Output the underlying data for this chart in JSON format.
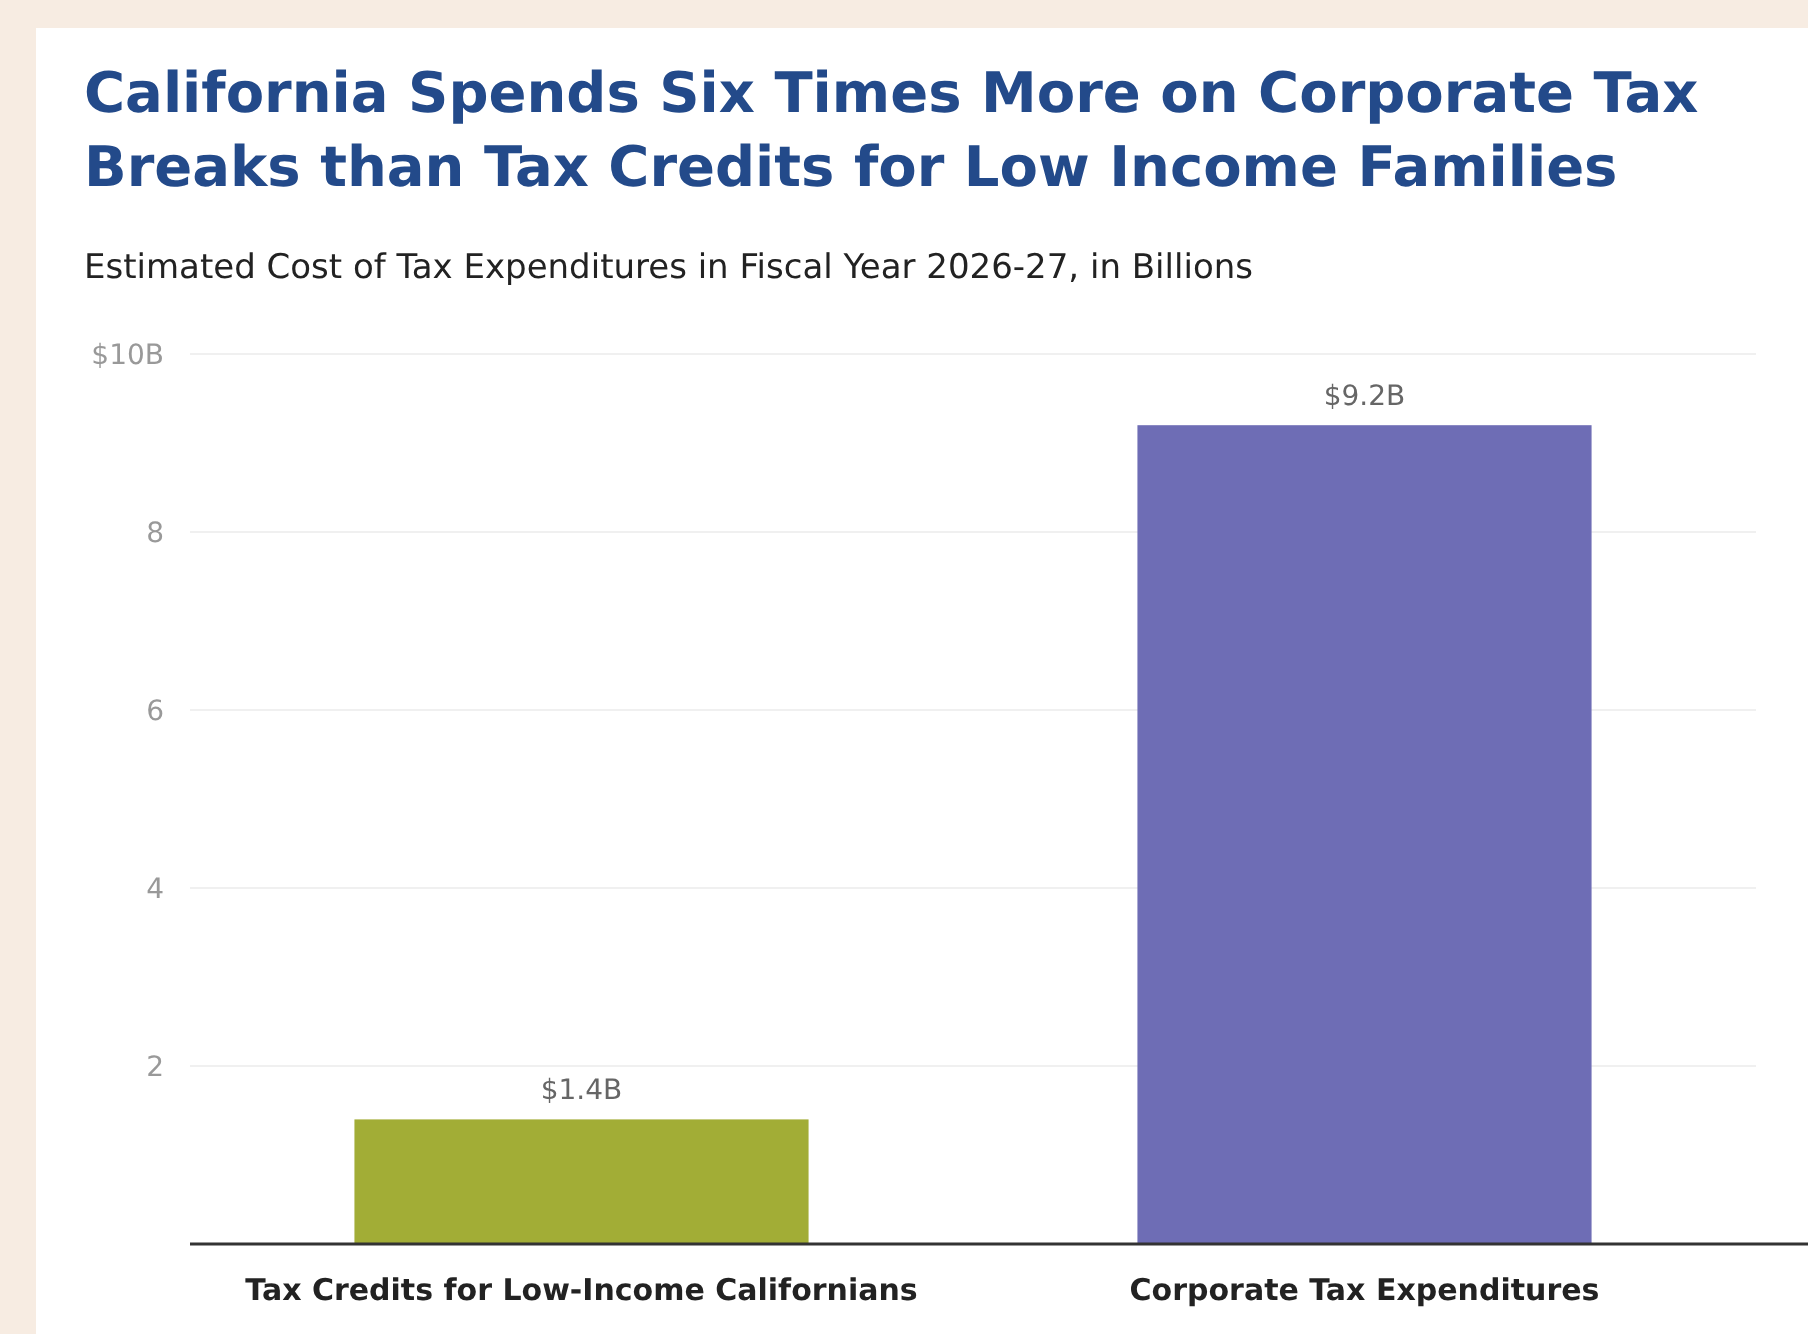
{
  "chart_data": {
    "type": "bar",
    "title": "California Spends Six Times More on Corporate Tax Breaks than Tax Credits for Low Income Families",
    "subtitle": "Estimated Cost of Tax Expenditures in Fiscal Year 2026-27, in Billions",
    "categories": [
      "Tax Credits for Low-Income Californians",
      "Corporate Tax Expenditures"
    ],
    "values": [
      1.4,
      9.2
    ],
    "colors": [
      "#a2ad36",
      "#6e6db5"
    ],
    "value_labels": [
      "$1.4B",
      "$9.2B"
    ],
    "ylim": [
      0,
      10
    ],
    "yticks": [
      {
        "value": 2,
        "label": "2"
      },
      {
        "value": 4,
        "label": "4"
      },
      {
        "value": 6,
        "label": "6"
      },
      {
        "value": 8,
        "label": "8"
      },
      {
        "value": 10,
        "label": "$10B"
      }
    ],
    "grid": "y"
  }
}
